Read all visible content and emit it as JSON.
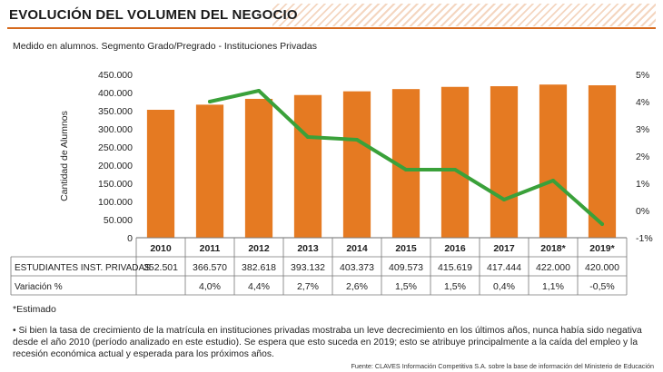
{
  "header": {
    "title": "EVOLUCIÓN DEL VOLUMEN DEL NEGOCIO",
    "subtitle": "Medido en alumnos. Segmento Grado/Pregrado - Instituciones Privadas"
  },
  "colors": {
    "accent": "#d66a1d",
    "bar": "#e57a22",
    "line": "#3aa13a",
    "rule": "#d66a1d"
  },
  "chart_data": {
    "type": "bar",
    "categories": [
      "2010",
      "2011",
      "2012",
      "2013",
      "2014",
      "2015",
      "2016",
      "2017",
      "2018*",
      "2019*"
    ],
    "series": [
      {
        "name": "ESTUDIANTES INST. PRIVADAS",
        "type": "bar",
        "axis": "left",
        "values": [
          352501,
          366570,
          382618,
          393132,
          403373,
          409573,
          415619,
          417444,
          422000,
          420000
        ]
      },
      {
        "name": "Variación %",
        "type": "line",
        "axis": "right",
        "values": [
          null,
          4.0,
          4.4,
          2.7,
          2.6,
          1.5,
          1.5,
          0.4,
          1.1,
          -0.5
        ]
      }
    ],
    "ylabel": "Cantidad de Alumnos",
    "ylim": [
      0,
      450000
    ],
    "y_ticks": [
      "0",
      "50.000",
      "100.000",
      "150.000",
      "200.000",
      "250.000",
      "300.000",
      "350.000",
      "400.000",
      "450.000"
    ],
    "y2lim": [
      -1,
      5
    ],
    "y2_ticks": [
      "-1%",
      "0%",
      "1%",
      "2%",
      "3%",
      "4%",
      "5%"
    ],
    "table": {
      "row_labels": [
        "ESTUDIANTES INST. PRIVADAS",
        "Variación %"
      ],
      "rows": [
        [
          "352.501",
          "366.570",
          "382.618",
          "393.132",
          "403.373",
          "409.573",
          "415.619",
          "417.444",
          "422.000",
          "420.000"
        ],
        [
          "",
          "4,0%",
          "4,4%",
          "2,7%",
          "2,6%",
          "1,5%",
          "1,5%",
          "0,4%",
          "1,1%",
          "-0,5%"
        ]
      ]
    }
  },
  "footer": {
    "estimado": "*Estimado",
    "note": "• Si bien la tasa de crecimiento de la matrícula en instituciones privadas mostraba un leve decrecimiento en los últimos años, nunca había sido negativa desde el año 2010 (período analizado en este estudio). Se espera que esto suceda en 2019; esto se atribuye principalmente a la caída del empleo y la recesión económica actual y esperada para los próximos años.",
    "source": "Fuente: CLAVES Información Competitiva S.A. sobre la base de información del Ministerio de Educación"
  }
}
